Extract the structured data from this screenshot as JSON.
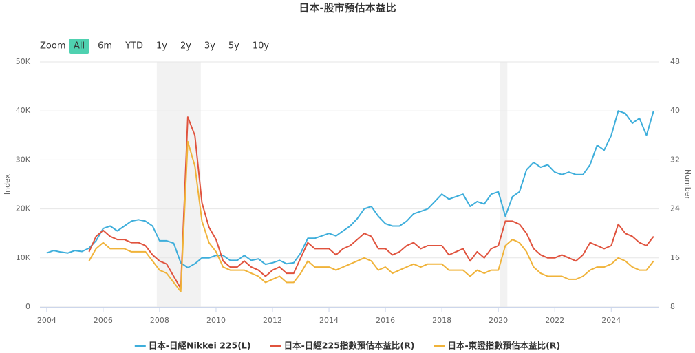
{
  "chart_data": {
    "type": "line",
    "title": "日本-股市預估本益比",
    "range_selector": {
      "label": "Zoom",
      "buttons": [
        "All",
        "6m",
        "YTD",
        "1y",
        "2y",
        "3y",
        "5y",
        "10y"
      ],
      "selected": 0
    },
    "y_label": "Index",
    "y2_label": "Number",
    "xlim": [
      2003.76,
      2025.7
    ],
    "xticks": [
      2004,
      2006,
      2008,
      2010,
      2012,
      2014,
      2016,
      2018,
      2020,
      2022,
      2024
    ],
    "ylim": [
      0,
      50000
    ],
    "yticks": [
      0,
      {
        "value": 10000,
        "label": "10K"
      },
      {
        "value": 20000,
        "label": "20K"
      },
      {
        "value": 30000,
        "label": "30K"
      },
      {
        "value": 40000,
        "label": "40K"
      },
      {
        "value": 50000,
        "label": "50K"
      }
    ],
    "y2lim": [
      8,
      48
    ],
    "y2ticks": [
      8,
      16,
      24,
      32,
      40,
      48
    ],
    "grid": true,
    "plot_bands": [
      [
        2007.9,
        2009.46
      ],
      [
        2020.07,
        2020.32
      ]
    ],
    "plot_band_color": "#f2f2f2",
    "x": [
      2004,
      2004.25,
      2004.5,
      2004.75,
      2005,
      2005.25,
      2005.5,
      2005.75,
      2006,
      2006.25,
      2006.5,
      2006.75,
      2007,
      2007.25,
      2007.5,
      2007.75,
      2008,
      2008.25,
      2008.5,
      2008.75,
      2009,
      2009.25,
      2009.5,
      2009.75,
      2010,
      2010.25,
      2010.5,
      2010.75,
      2011,
      2011.25,
      2011.5,
      2011.75,
      2012,
      2012.25,
      2012.5,
      2012.75,
      2013,
      2013.25,
      2013.5,
      2013.75,
      2014,
      2014.25,
      2014.5,
      2014.75,
      2015,
      2015.25,
      2015.5,
      2015.75,
      2016,
      2016.25,
      2016.5,
      2016.75,
      2017,
      2017.25,
      2017.5,
      2017.75,
      2018,
      2018.25,
      2018.5,
      2018.75,
      2019,
      2019.25,
      2019.5,
      2019.75,
      2020,
      2020.25,
      2020.5,
      2020.75,
      2021,
      2021.25,
      2021.5,
      2021.75,
      2022,
      2022.25,
      2022.5,
      2022.75,
      2023,
      2023.25,
      2023.5,
      2023.75,
      2024,
      2024.25,
      2024.5,
      2024.75,
      2025,
      2025.25,
      2025.5
    ],
    "series": [
      {
        "name": "日本-日經Nikkei 225(L)",
        "color": "#3eaedb",
        "axis": "y",
        "values": [
          11000,
          11500,
          11200,
          11000,
          11500,
          11300,
          12000,
          13500,
          16000,
          16500,
          15500,
          16500,
          17500,
          17800,
          17500,
          16500,
          13500,
          13500,
          13000,
          9000,
          8000,
          8800,
          10000,
          10000,
          10500,
          10500,
          9500,
          9500,
          10500,
          9500,
          9800,
          8700,
          9000,
          9500,
          8800,
          9000,
          11000,
          14000,
          14000,
          14500,
          15000,
          14500,
          15500,
          16500,
          18000,
          20000,
          20500,
          18500,
          17000,
          16500,
          16500,
          17500,
          19000,
          19500,
          20000,
          21500,
          23000,
          22000,
          22500,
          23000,
          20500,
          21500,
          21000,
          23000,
          23500,
          18500,
          22500,
          23500,
          28000,
          29500,
          28500,
          29000,
          27500,
          27000,
          27500,
          27000,
          27000,
          29000,
          33000,
          32000,
          35000,
          40000,
          39500,
          37500,
          38500,
          35000,
          40000
        ]
      },
      {
        "name": "日本-日經225指數預估本益比(R)",
        "color": "#e0533e",
        "axis": "y2",
        "values": [
          null,
          null,
          null,
          null,
          null,
          null,
          17,
          19.5,
          20.5,
          19.5,
          19,
          19,
          18.5,
          18.5,
          18,
          16.5,
          15.5,
          15,
          13,
          11,
          39,
          36,
          25,
          21,
          19,
          15.5,
          14.5,
          14.5,
          15.5,
          14.5,
          14,
          13,
          14,
          14.5,
          13.5,
          13.5,
          16,
          18.5,
          17.5,
          17.5,
          17.5,
          16.5,
          17.5,
          18,
          19,
          20,
          19.5,
          17.5,
          17.5,
          16.5,
          17,
          18,
          18.5,
          17.5,
          18,
          18,
          18,
          16.5,
          17,
          17.5,
          15.5,
          17,
          16,
          17.5,
          18,
          22,
          22,
          21.5,
          20,
          17.5,
          16.5,
          16,
          16,
          16.5,
          16,
          15.5,
          16.5,
          18.5,
          18,
          17.5,
          18,
          21.5,
          20,
          19.5,
          18.5,
          18,
          19.5
        ]
      },
      {
        "name": "日本-東證指數預估本益比(R)",
        "color": "#f0b33a",
        "axis": "y2",
        "values": [
          null,
          null,
          null,
          null,
          null,
          null,
          15.5,
          17.5,
          18.5,
          17.5,
          17.5,
          17.5,
          17,
          17,
          17,
          15.5,
          14,
          13.5,
          12,
          10.5,
          35,
          31,
          22,
          18.5,
          17,
          14.5,
          14,
          14,
          14,
          13.5,
          13,
          12,
          12.5,
          13,
          12,
          12,
          13.5,
          15.5,
          14.5,
          14.5,
          14.5,
          14,
          14.5,
          15,
          15.5,
          16,
          15.5,
          14,
          14.5,
          13.5,
          14,
          14.5,
          15,
          14.5,
          15,
          15,
          15,
          14,
          14,
          14,
          13,
          14,
          13.5,
          14,
          14,
          18,
          19,
          18.5,
          17,
          14.5,
          13.5,
          13,
          13,
          13,
          12.5,
          12.5,
          13,
          14,
          14.5,
          14.5,
          15,
          16,
          15.5,
          14.5,
          14,
          14,
          15.5
        ]
      }
    ]
  }
}
